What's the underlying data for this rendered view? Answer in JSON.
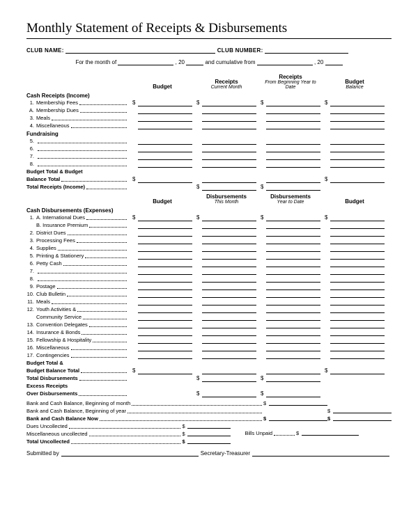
{
  "title": "Monthly Statement of Receipts & Disbursements",
  "club": {
    "name_label": "CLUB NAME:",
    "number_label": "CLUB NUMBER:"
  },
  "period": {
    "prefix": "For the month of",
    "year_prefix": ", 20",
    "mid": "and cumulative from",
    "year_prefix2": ", 20"
  },
  "headers1": {
    "c1": "Budget",
    "c2": "Receipts",
    "c2s": "Current Month",
    "c3": "Receipts",
    "c3s": "From Beginning Year to Date",
    "c4": "Budget",
    "c4s": "Balance"
  },
  "receipts": {
    "section": "Cash Receipts (Income)",
    "items": [
      {
        "n": "1.",
        "t": "Membership Fees"
      },
      {
        "n": "A.",
        "t": "Membership Dues"
      },
      {
        "n": "3.",
        "t": "Meals"
      },
      {
        "n": "4.",
        "t": "Miscellaneous"
      }
    ],
    "fundraising": "Fundraising",
    "fitems": [
      {
        "n": "5.",
        "t": ""
      },
      {
        "n": "6.",
        "t": ""
      },
      {
        "n": "7.",
        "t": ""
      },
      {
        "n": "8.",
        "t": ""
      }
    ],
    "total1": "Budget Total & Budget",
    "total1b": "Balance Total",
    "total2": "Total Receipts (Income)"
  },
  "headers2": {
    "c1": "Budget",
    "c2": "Disbursements",
    "c2s": "This Month",
    "c3": "Disbursements",
    "c3s": "Year to Date",
    "c4": "Budget"
  },
  "disb": {
    "section": "Cash Disbursements (Expenses)",
    "items": [
      {
        "n": "1.",
        "t": "A. International Dues"
      },
      {
        "n": "",
        "t": "B. Insurance Premium"
      },
      {
        "n": "2.",
        "t": "District Dues"
      },
      {
        "n": "3.",
        "t": "Processing Fees"
      },
      {
        "n": "4.",
        "t": "Supplies"
      },
      {
        "n": "5.",
        "t": "Printing & Stationery"
      },
      {
        "n": "6.",
        "t": "Petty Cash"
      },
      {
        "n": "7.",
        "t": ""
      },
      {
        "n": "8.",
        "t": ""
      },
      {
        "n": "9.",
        "t": "Postage"
      },
      {
        "n": "10.",
        "t": "Club Bulletin"
      },
      {
        "n": "11.",
        "t": "Meals"
      },
      {
        "n": "12.",
        "t": "Youth Activities &"
      },
      {
        "n": "",
        "t": "Community Service"
      },
      {
        "n": "13.",
        "t": "Convention Delegates"
      },
      {
        "n": "14.",
        "t": "Insurance & Bonds"
      },
      {
        "n": "15.",
        "t": "Fellowship & Hospitality"
      },
      {
        "n": "16.",
        "t": "Miscellaneous"
      },
      {
        "n": "17.",
        "t": "Contingencies"
      }
    ],
    "bt1": "Budget Total &",
    "bt2": "Budget Balance Total",
    "td": "Total Disbursements",
    "er": "Excess Receipts",
    "od": "Over Disbursements"
  },
  "footer": {
    "l1": "Bank and Cash Balance, Beginning of month",
    "l2": "Bank and Cash Balance, Beginning of year",
    "l3": "Bank and Cash Balance Now",
    "u1": "Dues Uncollected",
    "u2": "Miscellaneous uncollected",
    "u3": "Total Uncollected",
    "bu": "Bills Unpaid",
    "sub": "Submitted by",
    "st": "Secretary-Treasurer"
  }
}
